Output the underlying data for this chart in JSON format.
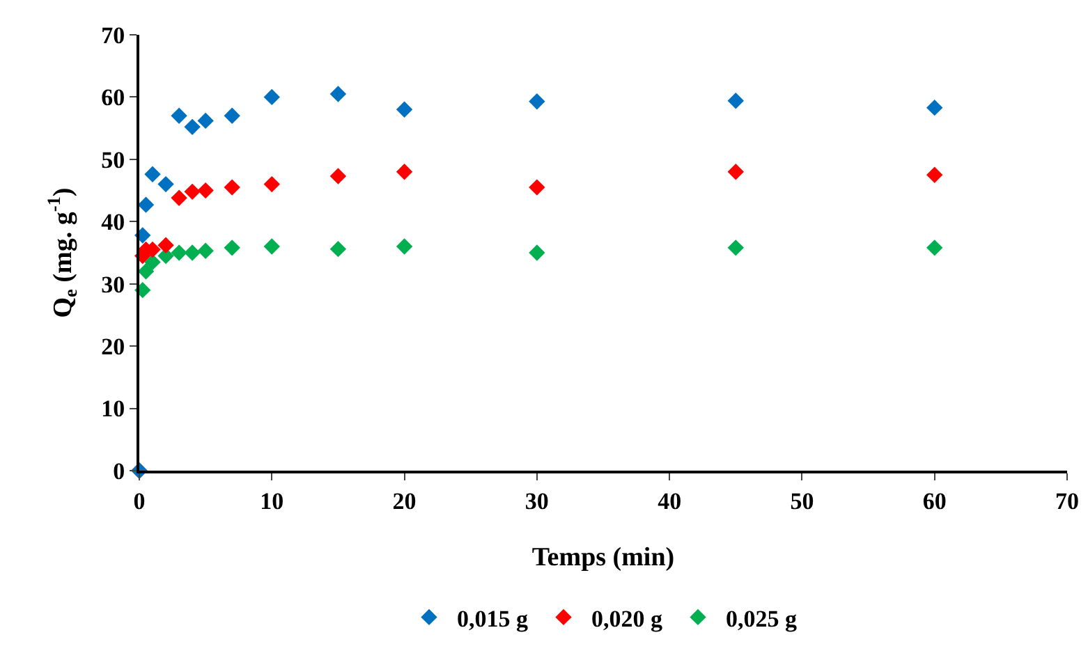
{
  "chart_data": {
    "type": "scatter",
    "xlabel": "Temps (min)",
    "ylabel": "Q$_{e}$ (mg. g$^{-1}$)",
    "x": [
      0,
      0.25,
      0.5,
      1,
      2,
      3,
      4,
      5,
      7,
      10,
      15,
      20,
      30,
      45,
      60
    ],
    "series": [
      {
        "name": "0,015 g",
        "color": "#0070c0",
        "values": [
          0,
          37.8,
          42.7,
          47.6,
          46,
          57,
          55.2,
          56.2,
          57,
          60,
          60.5,
          58,
          59.3,
          59.4,
          58.3
        ]
      },
      {
        "name": "0,020 g",
        "color": "#ff0000",
        "values": [
          0,
          34.5,
          35.5,
          35.5,
          36.2,
          43.8,
          44.8,
          45,
          45.5,
          46,
          47.3,
          48,
          45.5,
          48,
          47.5
        ]
      },
      {
        "name": "0,025 g",
        "color": "#00b050",
        "values": [
          0,
          29,
          32,
          33.5,
          34.5,
          35,
          35,
          35.3,
          35.8,
          36,
          35.6,
          36,
          35,
          35.8,
          35.8
        ]
      }
    ],
    "xlim": [
      0,
      70
    ],
    "xticks": [
      0,
      10,
      20,
      30,
      40,
      50,
      60,
      70
    ],
    "ylim": [
      0,
      70
    ],
    "yticks": [
      0,
      10,
      20,
      30,
      40,
      50,
      60,
      70
    ],
    "grid": false,
    "legend": "bottom",
    "marker": "diamond"
  }
}
